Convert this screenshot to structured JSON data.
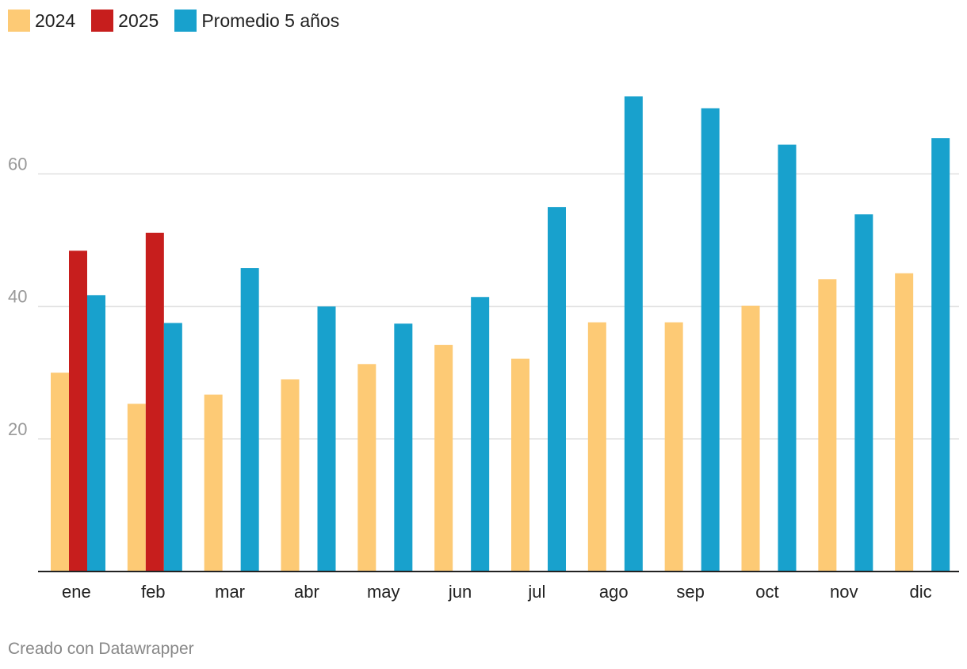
{
  "legend": [
    {
      "name": "2024",
      "color": "#fdca75"
    },
    {
      "name": "2025",
      "color": "#c71e1d"
    },
    {
      "name": "Promedio 5 años",
      "color": "#18a1cd"
    }
  ],
  "footer": {
    "credit": "Creado con Datawrapper"
  },
  "chart_data": {
    "type": "bar",
    "title": "",
    "xlabel": "",
    "ylabel": "",
    "ylim": [
      0,
      72
    ],
    "yticks": [
      20,
      40,
      60
    ],
    "grid": true,
    "legend_position": "top-left",
    "categories": [
      "ene",
      "feb",
      "mar",
      "abr",
      "may",
      "jun",
      "jul",
      "ago",
      "sep",
      "oct",
      "nov",
      "dic"
    ],
    "series": [
      {
        "name": "2024",
        "color": "#fdca75",
        "values": [
          30.0,
          25.3,
          26.7,
          29.0,
          31.3,
          34.2,
          32.1,
          37.6,
          37.6,
          40.1,
          44.1,
          45.0
        ]
      },
      {
        "name": "2025",
        "color": "#c71e1d",
        "values": [
          48.4,
          51.1,
          null,
          null,
          null,
          null,
          null,
          null,
          null,
          null,
          null,
          null
        ]
      },
      {
        "name": "Promedio 5 años",
        "color": "#18a1cd",
        "values": [
          41.7,
          37.5,
          45.8,
          40.0,
          37.4,
          41.4,
          55.0,
          71.7,
          69.9,
          64.4,
          53.9,
          65.4
        ]
      }
    ]
  }
}
